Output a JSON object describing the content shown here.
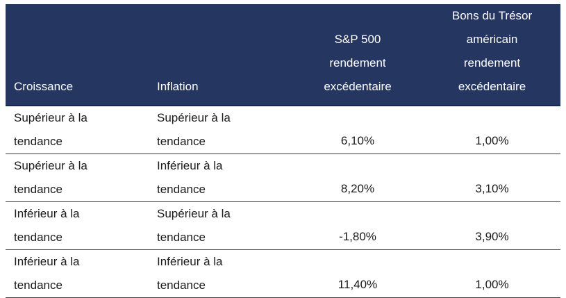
{
  "header": {
    "col1": "Croissance",
    "col2": "Inflation",
    "col3_lines": [
      "S&P 500",
      "rendement",
      "excédentaire"
    ],
    "col4_lines": [
      "Bons du Trésor",
      "américain",
      "rendement",
      "excédentaire"
    ]
  },
  "rows": [
    {
      "growth_lines": [
        "Supérieur à la",
        "tendance"
      ],
      "inflation_lines": [
        "Supérieur à la",
        "tendance"
      ],
      "sp500": "6,10%",
      "treasury": "1,00%"
    },
    {
      "growth_lines": [
        "Supérieur à la",
        "tendance"
      ],
      "inflation_lines": [
        "Inférieur à la",
        "tendance"
      ],
      "sp500": "8,20%",
      "treasury": "3,10%"
    },
    {
      "growth_lines": [
        "Inférieur à la",
        "tendance"
      ],
      "inflation_lines": [
        "Supérieur à la",
        "tendance"
      ],
      "sp500": "-1,80%",
      "treasury": "3,90%"
    },
    {
      "growth_lines": [
        "Inférieur à la",
        "tendance"
      ],
      "inflation_lines": [
        "Inférieur à la",
        "tendance"
      ],
      "sp500": "11,40%",
      "treasury": "1,00%"
    }
  ],
  "colors": {
    "header_bg": "#253660",
    "header_text": "#ffffff",
    "rule": "#3a3a3a"
  }
}
